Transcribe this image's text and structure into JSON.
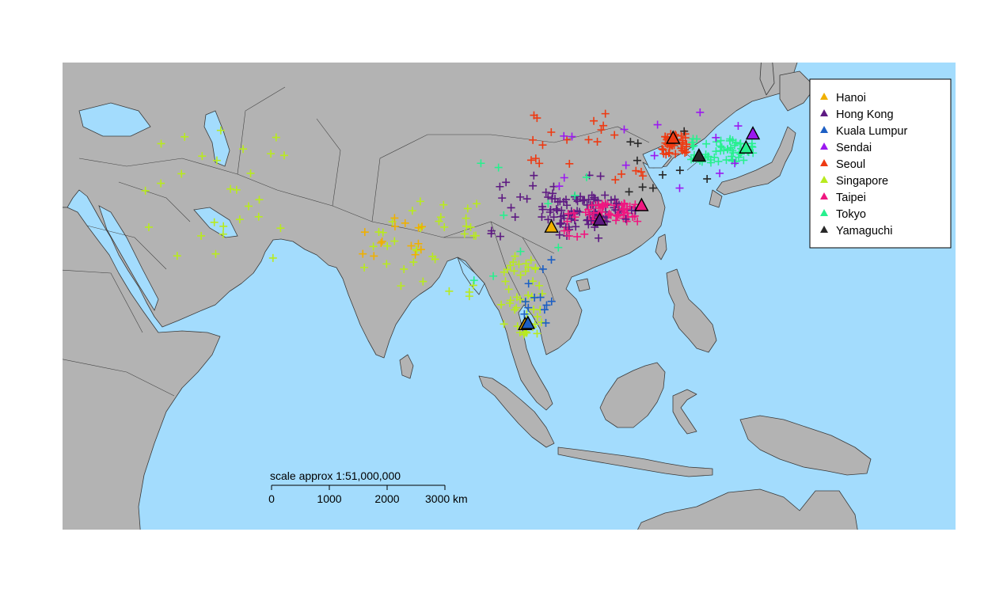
{
  "colors": {
    "sea": "#a3dcfd",
    "land": "#b3b3b3",
    "Hanoi": "#f0b000",
    "Hong Kong": "#5e1a82",
    "Kuala Lumpur": "#1d5fc4",
    "Sendai": "#9b19f0",
    "Seoul": "#ee3a12",
    "Singapore": "#b8ea1e",
    "Taipei": "#ef1780",
    "Tokyo": "#27f08e",
    "Yamaguchi": "#282828"
  },
  "legend": {
    "placement": "top-right",
    "entries": [
      "Hanoi",
      "Hong Kong",
      "Kuala Lumpur",
      "Sendai",
      "Seoul",
      "Singapore",
      "Taipei",
      "Tokyo",
      "Yamaguchi"
    ]
  },
  "scale_bar": {
    "title": "scale approx 1:51,000,000",
    "ticks": [
      "0",
      "1000",
      "2000",
      "3000 km"
    ]
  },
  "markers": {
    "cities": [
      {
        "name": "Hanoi",
        "lon": 105.8,
        "lat": 21.0
      },
      {
        "name": "Hanoi",
        "lon": 101.2,
        "lat": 2.9
      },
      {
        "name": "Hong Kong",
        "lon": 114.2,
        "lat": 22.3
      },
      {
        "name": "Kuala Lumpur",
        "lon": 101.7,
        "lat": 3.1
      },
      {
        "name": "Sendai",
        "lon": 140.9,
        "lat": 38.3
      },
      {
        "name": "Seoul",
        "lon": 127.0,
        "lat": 37.5
      },
      {
        "name": "Taipei",
        "lon": 121.5,
        "lat": 25.0
      },
      {
        "name": "Tokyo",
        "lon": 139.7,
        "lat": 35.7
      },
      {
        "name": "Yamaguchi",
        "lon": 131.5,
        "lat": 34.2
      }
    ],
    "clusters": [
      {
        "name": "Hong Kong",
        "lon": [
          104,
          118
        ],
        "lat": [
          21,
          27
        ],
        "n": 80
      },
      {
        "name": "Taipei",
        "lon": [
          112,
          121
        ],
        "lat": [
          22,
          25.5
        ],
        "n": 50
      },
      {
        "name": "Tokyo",
        "lon": [
          130,
          141
        ],
        "lat": [
          33,
          37.5
        ],
        "n": 60
      },
      {
        "name": "Seoul",
        "lon": [
          125,
          129.5
        ],
        "lat": [
          34.5,
          38.5
        ],
        "n": 40
      },
      {
        "name": "Singapore",
        "lon": [
          97,
          104.5
        ],
        "lat": [
          1,
          16
        ],
        "n": 45
      },
      {
        "name": "Kuala Lumpur",
        "lon": [
          100,
          106.5
        ],
        "lat": [
          3,
          15
        ],
        "n": 12
      },
      {
        "name": "Singapore",
        "lon": [
          73,
          93
        ],
        "lat": [
          8,
          26
        ],
        "n": 35
      },
      {
        "name": "Hanoi",
        "lon": [
          72,
          84
        ],
        "lat": [
          15,
          23
        ],
        "n": 14
      },
      {
        "name": "Singapore",
        "lon": [
          35,
          60
        ],
        "lat": [
          15,
          42
        ],
        "n": 28
      },
      {
        "name": "Seoul",
        "lon": [
          102,
          124
        ],
        "lat": [
          29,
          43
        ],
        "n": 22
      },
      {
        "name": "Hong Kong",
        "lon": [
          95,
          121
        ],
        "lat": [
          19,
          32
        ],
        "n": 30
      },
      {
        "name": "Sendai",
        "lon": [
          100,
          141
        ],
        "lat": [
          28,
          43
        ],
        "n": 14
      },
      {
        "name": "Yamaguchi",
        "lon": [
          119,
          134
        ],
        "lat": [
          26,
          40
        ],
        "n": 10
      },
      {
        "name": "Tokyo",
        "lon": [
          92,
          112
        ],
        "lat": [
          10,
          36
        ],
        "n": 10
      },
      {
        "name": "Taipei",
        "lon": [
          104,
          112
        ],
        "lat": [
          19,
          24
        ],
        "n": 10
      }
    ]
  }
}
